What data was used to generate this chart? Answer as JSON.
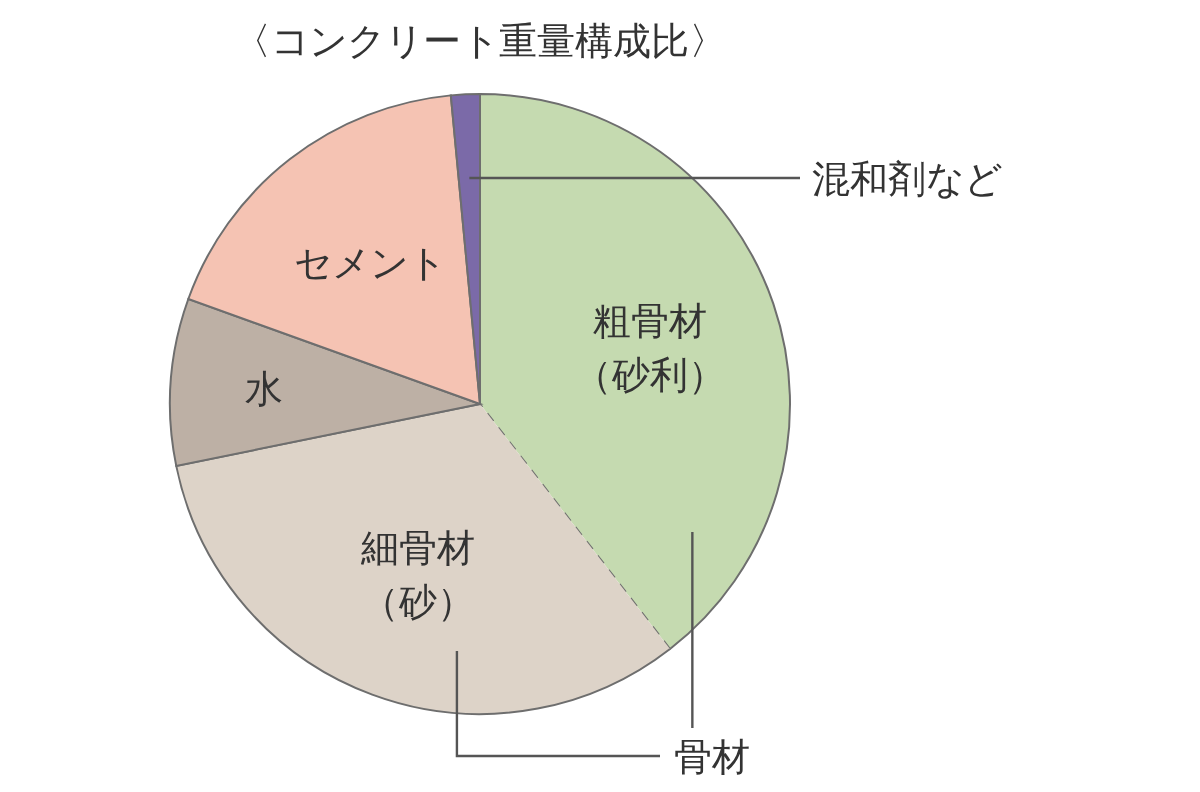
{
  "chart_data": {
    "type": "pie",
    "title": "〈コンクリート重量構成比〉",
    "categories": [
      "粗骨材（砂利）",
      "細骨材（砂）",
      "水",
      "セメント",
      "混和剤など"
    ],
    "values": [
      39.5,
      32.3,
      8.7,
      18.0,
      1.5
    ],
    "colors": [
      "#c5dab0",
      "#ddd3c8",
      "#bdb0a5",
      "#f5c3b3",
      "#7b6aa8"
    ],
    "annotations": [
      "骨材"
    ]
  }
}
